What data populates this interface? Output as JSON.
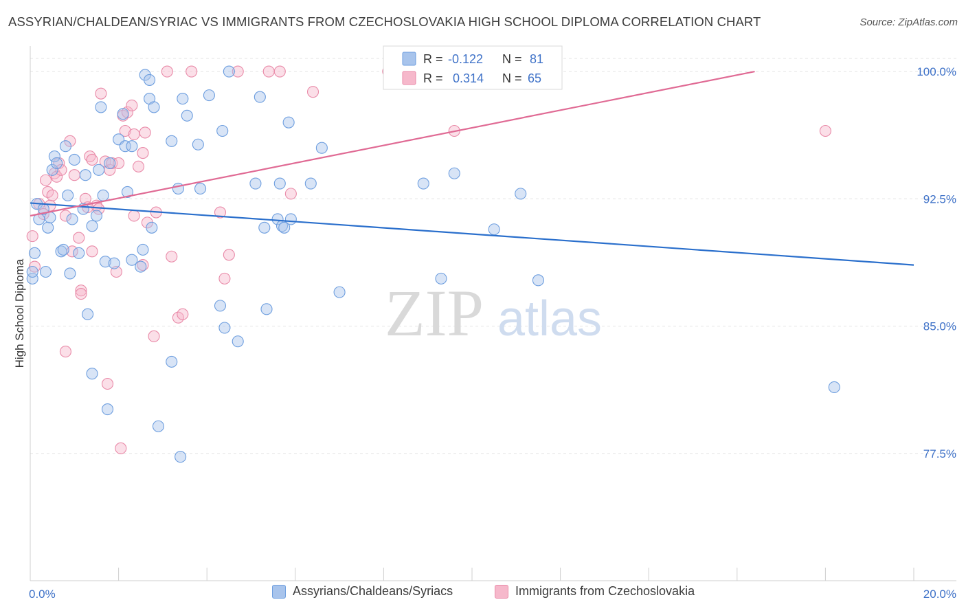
{
  "header": {
    "title": "ASSYRIAN/CHALDEAN/SYRIAC VS IMMIGRANTS FROM CZECHOSLOVAKIA HIGH SCHOOL DIPLOMA CORRELATION CHART",
    "source": "Source: ZipAtlas.com"
  },
  "watermark": {
    "part1": "ZIP",
    "part2": "atlas"
  },
  "colors": {
    "blue_fill": "#a8c4ec",
    "blue_stroke": "#6d9edf",
    "blue_line": "#2a6fcc",
    "pink_fill": "#f6b8cb",
    "pink_stroke": "#e98aa8",
    "pink_line": "#e06a94",
    "value_text": "#3f72c8",
    "grid": "#e3e3e3"
  },
  "legend_box": {
    "rows": [
      {
        "r_label": "R =",
        "r_value": "-0.122",
        "n_label": "N =",
        "n_value": "81",
        "series": "blue"
      },
      {
        "r_label": "R =",
        "r_value": "0.314",
        "n_label": "N =",
        "n_value": "65",
        "series": "pink"
      }
    ]
  },
  "legend_bottom": [
    {
      "label": "Assyrians/Chaldeans/Syriacs",
      "series": "blue"
    },
    {
      "label": "Immigrants from Czechoslovakia",
      "series": "pink"
    }
  ],
  "chart_data": {
    "type": "scatter",
    "title": "ASSYRIAN/CHALDEAN/SYRIAC VS IMMIGRANTS FROM CZECHOSLOVAKIA HIGH SCHOOL DIPLOMA CORRELATION CHART",
    "xlabel": "",
    "ylabel": "High School Diploma",
    "xlim": [
      0,
      20
    ],
    "ylim": [
      70.0,
      101.5
    ],
    "x_tick_labels": [
      {
        "value": 0,
        "label": "0.0%"
      },
      {
        "value": 20,
        "label": "20.0%"
      }
    ],
    "y_tick_labels": [
      {
        "value": 100.0,
        "label": "100.0%"
      },
      {
        "value": 92.5,
        "label": "92.5%"
      },
      {
        "value": 85.0,
        "label": "85.0%"
      },
      {
        "value": 77.5,
        "label": "77.5%"
      }
    ],
    "grid": true,
    "legend_position": "top-center",
    "series": [
      {
        "name": "Assyrians/Chaldeans/Syriacs",
        "color": "blue",
        "stats": {
          "R": -0.122,
          "N": 81
        },
        "trend": {
          "x": [
            0,
            20
          ],
          "y": [
            92.25,
            88.6
          ]
        },
        "points": [
          [
            0.05,
            87.8
          ],
          [
            0.1,
            89.3
          ],
          [
            0.15,
            92.2
          ],
          [
            0.2,
            91.3
          ],
          [
            0.3,
            91.9
          ],
          [
            0.35,
            88.2
          ],
          [
            0.4,
            90.8
          ],
          [
            0.45,
            91.4
          ],
          [
            0.5,
            94.2
          ],
          [
            0.55,
            95.0
          ],
          [
            0.6,
            94.6
          ],
          [
            0.7,
            89.4
          ],
          [
            0.75,
            89.5
          ],
          [
            0.8,
            95.6
          ],
          [
            0.85,
            92.7
          ],
          [
            0.9,
            88.1
          ],
          [
            0.95,
            91.3
          ],
          [
            1.0,
            94.8
          ],
          [
            1.1,
            89.3
          ],
          [
            1.2,
            91.9
          ],
          [
            1.25,
            93.9
          ],
          [
            1.3,
            85.7
          ],
          [
            1.4,
            90.9
          ],
          [
            1.5,
            91.5
          ],
          [
            1.55,
            94.2
          ],
          [
            1.6,
            97.9
          ],
          [
            1.65,
            92.7
          ],
          [
            1.7,
            88.8
          ],
          [
            1.75,
            80.1
          ],
          [
            1.8,
            94.6
          ],
          [
            1.9,
            88.7
          ],
          [
            1.4,
            82.2
          ],
          [
            2.0,
            96.0
          ],
          [
            2.1,
            97.5
          ],
          [
            2.15,
            95.6
          ],
          [
            2.2,
            92.9
          ],
          [
            2.3,
            88.9
          ],
          [
            2.3,
            95.6
          ],
          [
            2.5,
            88.5
          ],
          [
            2.55,
            89.5
          ],
          [
            2.6,
            99.8
          ],
          [
            2.7,
            99.5
          ],
          [
            2.7,
            98.4
          ],
          [
            2.75,
            90.8
          ],
          [
            2.8,
            97.9
          ],
          [
            2.9,
            79.1
          ],
          [
            3.2,
            95.9
          ],
          [
            3.2,
            82.9
          ],
          [
            3.35,
            93.1
          ],
          [
            3.4,
            77.3
          ],
          [
            3.45,
            98.4
          ],
          [
            3.55,
            97.4
          ],
          [
            3.8,
            95.7
          ],
          [
            3.85,
            93.1
          ],
          [
            4.05,
            98.6
          ],
          [
            4.3,
            86.2
          ],
          [
            4.35,
            96.5
          ],
          [
            4.4,
            84.9
          ],
          [
            4.5,
            100.0
          ],
          [
            4.7,
            84.1
          ],
          [
            5.1,
            93.4
          ],
          [
            5.2,
            98.5
          ],
          [
            5.3,
            90.8
          ],
          [
            5.35,
            86.0
          ],
          [
            5.6,
            91.3
          ],
          [
            5.65,
            93.4
          ],
          [
            5.7,
            90.9
          ],
          [
            5.75,
            90.8
          ],
          [
            5.85,
            97.0
          ],
          [
            5.9,
            91.3
          ],
          [
            6.35,
            93.4
          ],
          [
            6.6,
            95.5
          ],
          [
            7.0,
            87.0
          ],
          [
            8.9,
            93.4
          ],
          [
            9.3,
            87.8
          ],
          [
            9.6,
            94.0
          ],
          [
            10.5,
            90.7
          ],
          [
            11.1,
            92.8
          ],
          [
            11.5,
            87.7
          ],
          [
            18.2,
            81.4
          ],
          [
            0.05,
            88.2
          ]
        ]
      },
      {
        "name": "Immigrants from Czechoslovakia",
        "color": "pink",
        "stats": {
          "R": 0.314,
          "N": 65
        },
        "trend": {
          "x": [
            0,
            16.4
          ],
          "y": [
            91.5,
            100.0
          ]
        },
        "points": [
          [
            0.05,
            90.3
          ],
          [
            0.1,
            88.5
          ],
          [
            0.2,
            92.2
          ],
          [
            0.3,
            91.6
          ],
          [
            0.35,
            93.6
          ],
          [
            0.4,
            92.9
          ],
          [
            0.45,
            92.1
          ],
          [
            0.5,
            92.7
          ],
          [
            0.55,
            94.0
          ],
          [
            0.6,
            93.8
          ],
          [
            0.65,
            94.6
          ],
          [
            0.7,
            94.2
          ],
          [
            0.8,
            91.5
          ],
          [
            0.8,
            83.5
          ],
          [
            0.9,
            95.9
          ],
          [
            0.95,
            89.4
          ],
          [
            1.0,
            93.9
          ],
          [
            1.1,
            90.2
          ],
          [
            1.15,
            87.1
          ],
          [
            1.15,
            86.9
          ],
          [
            1.25,
            92.5
          ],
          [
            1.35,
            95.0
          ],
          [
            1.4,
            94.8
          ],
          [
            1.4,
            89.4
          ],
          [
            1.5,
            92.1
          ],
          [
            1.55,
            91.9
          ],
          [
            1.6,
            98.7
          ],
          [
            1.7,
            94.7
          ],
          [
            1.75,
            81.6
          ],
          [
            1.8,
            94.2
          ],
          [
            1.85,
            94.6
          ],
          [
            1.95,
            88.2
          ],
          [
            2.05,
            77.8
          ],
          [
            2.1,
            97.4
          ],
          [
            2.15,
            96.5
          ],
          [
            2.2,
            97.6
          ],
          [
            2.3,
            98.0
          ],
          [
            2.35,
            96.3
          ],
          [
            2.35,
            91.5
          ],
          [
            2.45,
            94.4
          ],
          [
            2.55,
            95.2
          ],
          [
            2.6,
            96.4
          ],
          [
            2.55,
            88.6
          ],
          [
            2.65,
            91.1
          ],
          [
            2.8,
            84.4
          ],
          [
            2.85,
            91.7
          ],
          [
            3.1,
            100.0
          ],
          [
            3.2,
            89.1
          ],
          [
            3.35,
            85.5
          ],
          [
            3.45,
            85.7
          ],
          [
            3.65,
            100.0
          ],
          [
            4.3,
            91.7
          ],
          [
            4.4,
            87.8
          ],
          [
            4.5,
            89.2
          ],
          [
            4.7,
            100.0
          ],
          [
            5.4,
            100.0
          ],
          [
            5.65,
            100.0
          ],
          [
            5.9,
            92.8
          ],
          [
            6.4,
            98.8
          ],
          [
            8.1,
            100.0
          ],
          [
            9.6,
            96.5
          ],
          [
            18.0,
            96.5
          ],
          [
            8.9,
            100.0
          ],
          [
            1.3,
            92.0
          ],
          [
            2.0,
            94.6
          ]
        ]
      }
    ]
  }
}
